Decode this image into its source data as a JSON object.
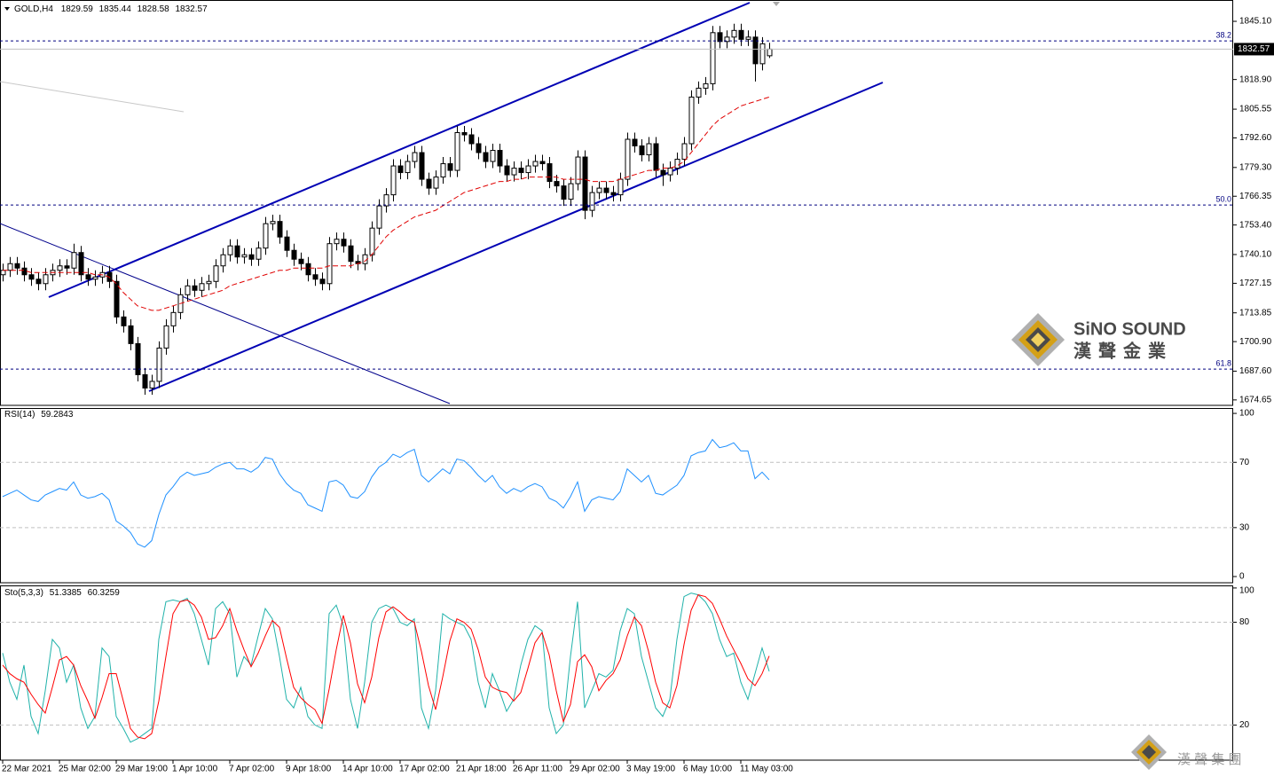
{
  "chart_data": [
    {
      "type": "candlestick",
      "title": "GOLD,H4",
      "categories": [
        "22 Mar 2021",
        null,
        null,
        null,
        null,
        null,
        null,
        null,
        "25 Mar 02:00",
        null,
        null,
        null,
        null,
        null,
        null,
        null,
        "29 Mar 19:00",
        null,
        null,
        null,
        null,
        null,
        null,
        null,
        "1 Apr 10:00",
        null,
        null,
        null,
        null,
        null,
        null,
        null,
        "7 Apr 02:00",
        null,
        null,
        null,
        null,
        null,
        null,
        null,
        "9 Apr 18:00",
        null,
        null,
        null,
        null,
        null,
        null,
        null,
        "14 Apr 10:00",
        null,
        null,
        null,
        null,
        null,
        null,
        null,
        "17 Apr 02:00",
        null,
        null,
        null,
        null,
        null,
        null,
        null,
        "21 Apr 18:00",
        null,
        null,
        null,
        null,
        null,
        null,
        null,
        "26 Apr 11:00",
        null,
        null,
        null,
        null,
        null,
        null,
        null,
        "29 Apr 02:00",
        null,
        null,
        null,
        null,
        null,
        null,
        null,
        "3 May 19:00",
        null,
        null,
        null,
        null,
        null,
        null,
        null,
        "6 May 10:00",
        null,
        null,
        null,
        null,
        null,
        null,
        null,
        "11 May 03:00",
        null,
        null,
        null,
        null
      ],
      "open": [
        1731,
        1733,
        1736,
        1734,
        1731,
        1729,
        1727,
        1731,
        1733,
        1735,
        1734,
        1741,
        1731,
        1729,
        1730,
        1732,
        1728,
        1712,
        1708,
        1700,
        1686,
        1680,
        1683,
        1698,
        1708,
        1714,
        1722,
        1726,
        1724,
        1727,
        1728,
        1735,
        1740,
        1744,
        1739,
        1740,
        1738,
        1743,
        1754,
        1755,
        1748,
        1742,
        1738,
        1736,
        1731,
        1729,
        1727,
        1745,
        1747,
        1744,
        1737,
        1736,
        1740,
        1752,
        1762,
        1767,
        1780,
        1777,
        1782,
        1786,
        1774,
        1770,
        1775,
        1781,
        1778,
        1795,
        1794,
        1790,
        1786,
        1782,
        1787,
        1780,
        1776,
        1779,
        1777,
        1780,
        1782,
        1781,
        1773,
        1771,
        1765,
        1772,
        1784,
        1760,
        1768,
        1770,
        1768,
        1767,
        1774,
        1792,
        1789,
        1785,
        1790,
        1778,
        1776,
        1779,
        1783,
        1790,
        1811,
        1815,
        1817,
        1840,
        1836,
        1838,
        1841,
        1837,
        1838,
        1826,
        1829.59
      ],
      "high": [
        1736,
        1739,
        1739,
        1737,
        1734,
        1732,
        1734,
        1736,
        1738,
        1738,
        1745,
        1744,
        1734,
        1733,
        1735,
        1735,
        1731,
        1715,
        1711,
        1703,
        1689,
        1686,
        1701,
        1711,
        1717,
        1725,
        1729,
        1729,
        1730,
        1731,
        1738,
        1743,
        1747,
        1747,
        1743,
        1743,
        1746,
        1757,
        1758,
        1758,
        1751,
        1745,
        1741,
        1739,
        1734,
        1732,
        1748,
        1750,
        1750,
        1747,
        1740,
        1743,
        1755,
        1765,
        1770,
        1783,
        1783,
        1785,
        1789,
        1789,
        1777,
        1778,
        1784,
        1784,
        1798,
        1798,
        1797,
        1793,
        1789,
        1790,
        1790,
        1783,
        1782,
        1782,
        1783,
        1785,
        1785,
        1784,
        1776,
        1774,
        1775,
        1787,
        1787,
        1771,
        1773,
        1773,
        1771,
        1777,
        1795,
        1795,
        1792,
        1793,
        1793,
        1781,
        1782,
        1786,
        1793,
        1814,
        1818,
        1820,
        1843,
        1843,
        1841,
        1844,
        1844,
        1841,
        1841,
        1838,
        1835.44
      ],
      "low": [
        1728,
        1730,
        1731,
        1728,
        1726,
        1724,
        1724,
        1728,
        1730,
        1731,
        1731,
        1728,
        1726,
        1726,
        1727,
        1725,
        1709,
        1705,
        1697,
        1683,
        1677,
        1677,
        1680,
        1695,
        1705,
        1711,
        1719,
        1721,
        1721,
        1724,
        1725,
        1732,
        1737,
        1736,
        1736,
        1735,
        1735,
        1740,
        1751,
        1745,
        1739,
        1735,
        1733,
        1728,
        1726,
        1724,
        1724,
        1742,
        1741,
        1734,
        1733,
        1733,
        1737,
        1749,
        1759,
        1764,
        1774,
        1774,
        1779,
        1771,
        1767,
        1767,
        1772,
        1775,
        1775,
        1791,
        1787,
        1783,
        1779,
        1779,
        1777,
        1773,
        1773,
        1774,
        1774,
        1777,
        1778,
        1770,
        1768,
        1762,
        1762,
        1769,
        1756,
        1757,
        1765,
        1765,
        1764,
        1764,
        1771,
        1786,
        1782,
        1782,
        1775,
        1771,
        1773,
        1776,
        1780,
        1787,
        1808,
        1812,
        1814,
        1833,
        1833,
        1835,
        1834,
        1834,
        1818,
        1823,
        1828.58
      ],
      "close": [
        1733,
        1736,
        1734,
        1731,
        1729,
        1727,
        1731,
        1733,
        1735,
        1734,
        1741,
        1731,
        1729,
        1730,
        1732,
        1728,
        1712,
        1708,
        1700,
        1686,
        1680,
        1683,
        1698,
        1708,
        1714,
        1722,
        1726,
        1724,
        1727,
        1728,
        1735,
        1740,
        1744,
        1739,
        1740,
        1738,
        1743,
        1754,
        1755,
        1748,
        1742,
        1738,
        1736,
        1731,
        1729,
        1727,
        1745,
        1747,
        1744,
        1737,
        1736,
        1740,
        1752,
        1762,
        1767,
        1780,
        1777,
        1782,
        1786,
        1774,
        1770,
        1775,
        1781,
        1778,
        1795,
        1794,
        1790,
        1786,
        1782,
        1787,
        1780,
        1776,
        1779,
        1777,
        1780,
        1782,
        1781,
        1773,
        1771,
        1765,
        1772,
        1784,
        1760,
        1768,
        1770,
        1768,
        1767,
        1774,
        1792,
        1789,
        1785,
        1790,
        1778,
        1776,
        1779,
        1783,
        1790,
        1811,
        1815,
        1817,
        1840,
        1836,
        1838,
        1841,
        1837,
        1838,
        1826,
        1835,
        1832.57
      ],
      "up_color": "#ffffff",
      "down_color": "#000000",
      "wick_color": "#000000",
      "ma": {
        "color": "#e00000",
        "values": [
          1733,
          1733,
          1733,
          1733,
          1732,
          1732,
          1732,
          1732,
          1732,
          1732,
          1732,
          1732,
          1732,
          1731,
          1731,
          1730,
          1727,
          1723,
          1720,
          1717,
          1716,
          1715,
          1715,
          1716,
          1717,
          1718,
          1719,
          1720,
          1721,
          1722,
          1723,
          1724,
          1726,
          1727,
          1728,
          1729,
          1730,
          1731,
          1732,
          1733,
          1733,
          1734,
          1734,
          1734,
          1734,
          1734,
          1735,
          1735,
          1735,
          1735,
          1736,
          1737,
          1740,
          1744,
          1748,
          1751,
          1753,
          1755,
          1757,
          1758,
          1759,
          1760,
          1762,
          1764,
          1766,
          1768,
          1769,
          1770,
          1771,
          1772,
          1773,
          1773,
          1774,
          1774,
          1775,
          1775,
          1775,
          1775,
          1775,
          1774,
          1774,
          1774,
          1774,
          1773,
          1773,
          1773,
          1773,
          1774,
          1775,
          1776,
          1777,
          1778,
          1778,
          1779,
          1779,
          1780,
          1782,
          1786,
          1790,
          1794,
          1798,
          1801,
          1803,
          1805,
          1807,
          1808,
          1809,
          1810,
          1811
        ]
      },
      "levels": [
        {
          "label": "38.2",
          "value": 1836.3
        },
        {
          "label": "50.0",
          "value": 1762.4
        },
        {
          "label": "61.8",
          "value": 1688.5
        }
      ],
      "level_color": "#000080",
      "ylim": [
        1672.2,
        1854.7
      ],
      "yticks": [
        {
          "value": 1845.1,
          "label": "1845.10"
        },
        {
          "value": 1818.9,
          "label": "1818.90"
        },
        1805.55,
        {
          "value": 1792.6,
          "label": "1792.60"
        },
        {
          "value": 1779.3,
          "label": "1779.30"
        },
        1766.35,
        {
          "value": 1753.4,
          "label": "1753.40"
        },
        {
          "value": 1740.1,
          "label": "1740.10"
        },
        1727.15,
        1713.85,
        {
          "value": 1700.9,
          "label": "1700.90"
        },
        {
          "value": 1687.6,
          "label": "1687.60"
        },
        1674.65
      ]
    },
    {
      "type": "line",
      "title": "RSI(14)",
      "series": [
        {
          "color": "#1e90ff",
          "values": [
            49,
            51,
            53,
            50,
            47,
            46,
            50,
            52,
            54,
            53,
            58,
            50,
            48,
            49,
            51,
            47,
            34,
            31,
            27,
            20,
            18,
            22,
            38,
            50,
            55,
            61,
            64,
            62,
            63,
            64,
            67,
            69,
            70,
            66,
            66,
            64,
            67,
            73,
            72,
            63,
            57,
            53,
            51,
            44,
            42,
            40,
            58,
            59,
            56,
            49,
            48,
            52,
            61,
            67,
            70,
            75,
            73,
            76,
            78,
            62,
            58,
            62,
            66,
            63,
            72,
            71,
            67,
            62,
            58,
            62,
            55,
            51,
            54,
            52,
            55,
            57,
            55,
            48,
            46,
            42,
            49,
            58,
            40,
            47,
            49,
            48,
            47,
            52,
            66,
            62,
            58,
            62,
            51,
            50,
            53,
            56,
            62,
            74,
            76,
            77,
            84,
            79,
            80,
            82,
            77,
            77,
            60,
            64,
            59.2843
          ]
        }
      ],
      "levels": [
        30,
        70
      ],
      "ylim": [
        -3.8,
        103.3
      ],
      "yticks": [
        0,
        30,
        70,
        100
      ]
    },
    {
      "type": "line",
      "title": "Sto(5,3,3)",
      "series": [
        {
          "color": "#20b2aa",
          "values": [
            62,
            45,
            35,
            55,
            25,
            15,
            40,
            70,
            65,
            45,
            55,
            30,
            18,
            25,
            65,
            60,
            25,
            18,
            10,
            12,
            15,
            18,
            70,
            92,
            93,
            92,
            94,
            85,
            70,
            55,
            88,
            92,
            85,
            48,
            60,
            55,
            72,
            88,
            82,
            60,
            35,
            30,
            42,
            25,
            20,
            18,
            85,
            90,
            78,
            35,
            18,
            45,
            80,
            88,
            90,
            88,
            80,
            78,
            82,
            30,
            18,
            40,
            85,
            82,
            80,
            78,
            70,
            45,
            30,
            50,
            40,
            28,
            35,
            55,
            70,
            78,
            75,
            30,
            15,
            20,
            60,
            92,
            30,
            40,
            50,
            48,
            52,
            75,
            88,
            85,
            60,
            45,
            30,
            25,
            35,
            70,
            95,
            97,
            96,
            92,
            85,
            70,
            60,
            62,
            45,
            35,
            50,
            65,
            51.3385
          ]
        },
        {
          "color": "#ff0000",
          "values": [
            55,
            50,
            47,
            45,
            38,
            32,
            27,
            42,
            58,
            60,
            55,
            43,
            34,
            24,
            36,
            50,
            50,
            34,
            18,
            13,
            12,
            15,
            34,
            60,
            85,
            92,
            93,
            90,
            83,
            70,
            71,
            78,
            88,
            75,
            64,
            54,
            62,
            72,
            81,
            77,
            59,
            42,
            36,
            32,
            29,
            21,
            41,
            64,
            84,
            68,
            44,
            33,
            48,
            71,
            86,
            89,
            86,
            82,
            80,
            63,
            43,
            29,
            48,
            69,
            82,
            80,
            76,
            64,
            48,
            42,
            40,
            39,
            34,
            39,
            53,
            68,
            74,
            61,
            40,
            22,
            32,
            57,
            61,
            54,
            40,
            46,
            50,
            58,
            72,
            83,
            78,
            63,
            45,
            33,
            30,
            43,
            67,
            87,
            96,
            95,
            91,
            82,
            72,
            64,
            56,
            47,
            43,
            50,
            60.3259
          ]
        }
      ],
      "levels": [
        20,
        80
      ],
      "ylim": [
        -0.5,
        101.5
      ],
      "yticks": [
        20,
        80,
        100
      ]
    }
  ],
  "logo": {
    "name": "SiNO SOUND",
    "subtitle": "漢聲金業"
  },
  "footer_logo": "漢 聲 集 團"
}
